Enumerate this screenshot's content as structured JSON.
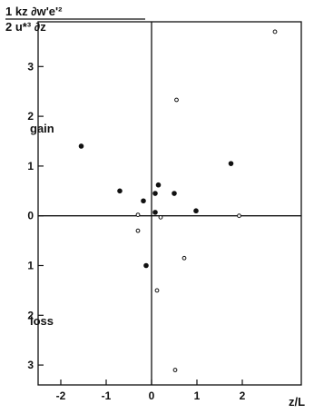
{
  "chart_data": {
    "type": "scatter",
    "title": "",
    "ylabel": {
      "line1": "1 kz  ∂w'e'²",
      "line2": "2 u*³   ∂z"
    },
    "xlabel": "z/L",
    "side_labels": {
      "upper": "gain",
      "lower": "loss"
    },
    "xlim": [
      -2.5,
      3.3
    ],
    "ylim": [
      -3.4,
      3.9
    ],
    "grid": false,
    "x_ticks": [
      {
        "value": -2,
        "label": "-2"
      },
      {
        "value": -1,
        "label": "-1"
      },
      {
        "value": 0,
        "label": "0"
      },
      {
        "value": 1,
        "label": "1"
      },
      {
        "value": 2,
        "label": "2"
      }
    ],
    "y_ticks": [
      {
        "value": 3,
        "label": "3"
      },
      {
        "value": 2,
        "label": "2"
      },
      {
        "value": 1,
        "label": "1"
      },
      {
        "value": 0,
        "label": "0"
      },
      {
        "value": -1,
        "label": "1"
      },
      {
        "value": -2,
        "label": "2"
      },
      {
        "value": -3,
        "label": "3"
      }
    ],
    "series": [
      {
        "marker": "filled",
        "points": [
          {
            "x": -1.55,
            "y": 1.4
          },
          {
            "x": -0.7,
            "y": 0.5
          },
          {
            "x": -0.18,
            "y": 0.3
          },
          {
            "x": 0.15,
            "y": 0.62
          },
          {
            "x": 0.08,
            "y": 0.45
          },
          {
            "x": 0.5,
            "y": 0.45
          },
          {
            "x": 0.08,
            "y": 0.07
          },
          {
            "x": 0.98,
            "y": 0.1
          },
          {
            "x": 1.75,
            "y": 1.05
          },
          {
            "x": -0.12,
            "y": -1.0
          }
        ]
      },
      {
        "marker": "open",
        "points": [
          {
            "x": 2.72,
            "y": 3.7
          },
          {
            "x": 0.55,
            "y": 2.33
          },
          {
            "x": -0.3,
            "y": 0.02
          },
          {
            "x": 0.2,
            "y": -0.03
          },
          {
            "x": 1.93,
            "y": 0.0
          },
          {
            "x": -0.3,
            "y": -0.3
          },
          {
            "x": 0.72,
            "y": -0.85
          },
          {
            "x": 0.12,
            "y": -1.5
          },
          {
            "x": 0.52,
            "y": -3.1
          }
        ]
      }
    ]
  }
}
